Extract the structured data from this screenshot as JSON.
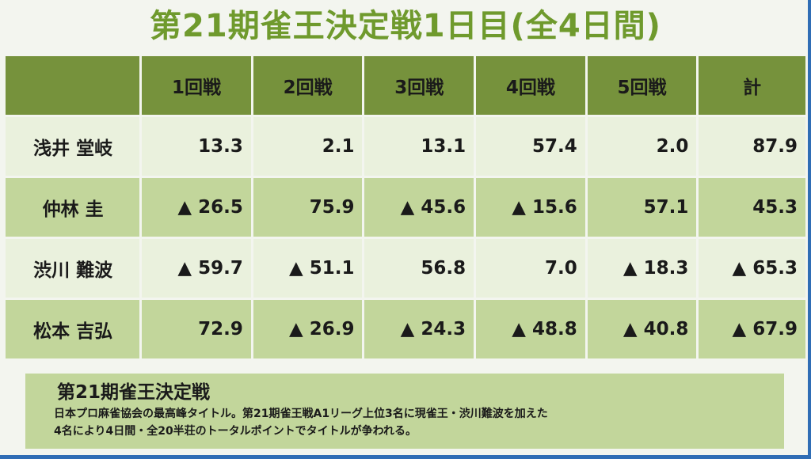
{
  "title": "第21期雀王決定戦1日目(全4日間)",
  "table": {
    "headers": [
      "",
      "1回戦",
      "2回戦",
      "3回戦",
      "4回戦",
      "5回戦",
      "計"
    ],
    "rows": [
      {
        "name": "浅井 堂岐",
        "cells": [
          "13.3",
          "2.1",
          "13.1",
          "57.4",
          "2.0",
          "87.9"
        ]
      },
      {
        "name": "仲林 圭",
        "cells": [
          "▲ 26.5",
          "75.9",
          "▲ 45.6",
          "▲ 15.6",
          "57.1",
          "45.3"
        ]
      },
      {
        "name": "渋川 難波",
        "cells": [
          "▲ 59.7",
          "▲ 51.1",
          "56.8",
          "7.0",
          "▲ 18.3",
          "▲ 65.3"
        ]
      },
      {
        "name": "松本 吉弘",
        "cells": [
          "72.9",
          "▲ 26.9",
          "▲ 24.3",
          "▲ 48.8",
          "▲ 40.8",
          "▲ 67.9"
        ]
      }
    ]
  },
  "note": {
    "title": "第21期雀王決定戦",
    "body": "日本プロ麻雀協会の最高峰タイトル。第21期雀王戦A1リーグ上位3名に現雀王・渋川難波を加えた\n4名により4日間・全20半荘のトータルポイントでタイトルが争われる。"
  },
  "colors": {
    "title_green": "#6f9a2d",
    "header_green": "#76923c",
    "row_light": "#eaf1dd",
    "row_dark": "#c2d69b",
    "frame_blue": "#2f6db5"
  }
}
